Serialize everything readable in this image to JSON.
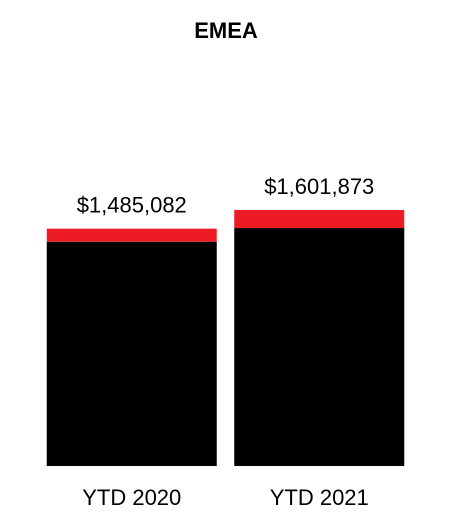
{
  "chart_data": {
    "type": "stacked-bar",
    "title": "EMEA",
    "categories": [
      "YTD 2020",
      "YTD 2021"
    ],
    "series": [
      {
        "color": "#000000",
        "values": [
          1403082,
          1488873
        ]
      },
      {
        "color": "#ed1c24",
        "values": [
          82000,
          113000
        ]
      }
    ],
    "totals": {
      "values": [
        1485082,
        1601873
      ],
      "value_labels": [
        "$1,485,082",
        "$1,601,873"
      ]
    }
  }
}
